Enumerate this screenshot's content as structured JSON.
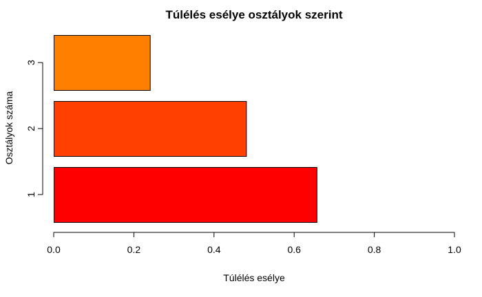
{
  "chart_data": {
    "type": "bar",
    "orientation": "horizontal",
    "title": "Túlélés esélye osztályok szerint",
    "xlabel": "Túlélés esélye",
    "ylabel": "Osztályok száma",
    "categories": [
      "1",
      "2",
      "3"
    ],
    "values": [
      0.656,
      0.48,
      0.24
    ],
    "colors": [
      "#ff0000",
      "#ff4000",
      "#ff7f00"
    ],
    "xlim": [
      0,
      1
    ],
    "xticks": [
      "0.0",
      "0.2",
      "0.4",
      "0.6",
      "0.8",
      "1.0"
    ],
    "xtick_values": [
      0,
      0.2,
      0.4,
      0.6,
      0.8,
      1.0
    ],
    "grid": false,
    "legend": "none"
  }
}
